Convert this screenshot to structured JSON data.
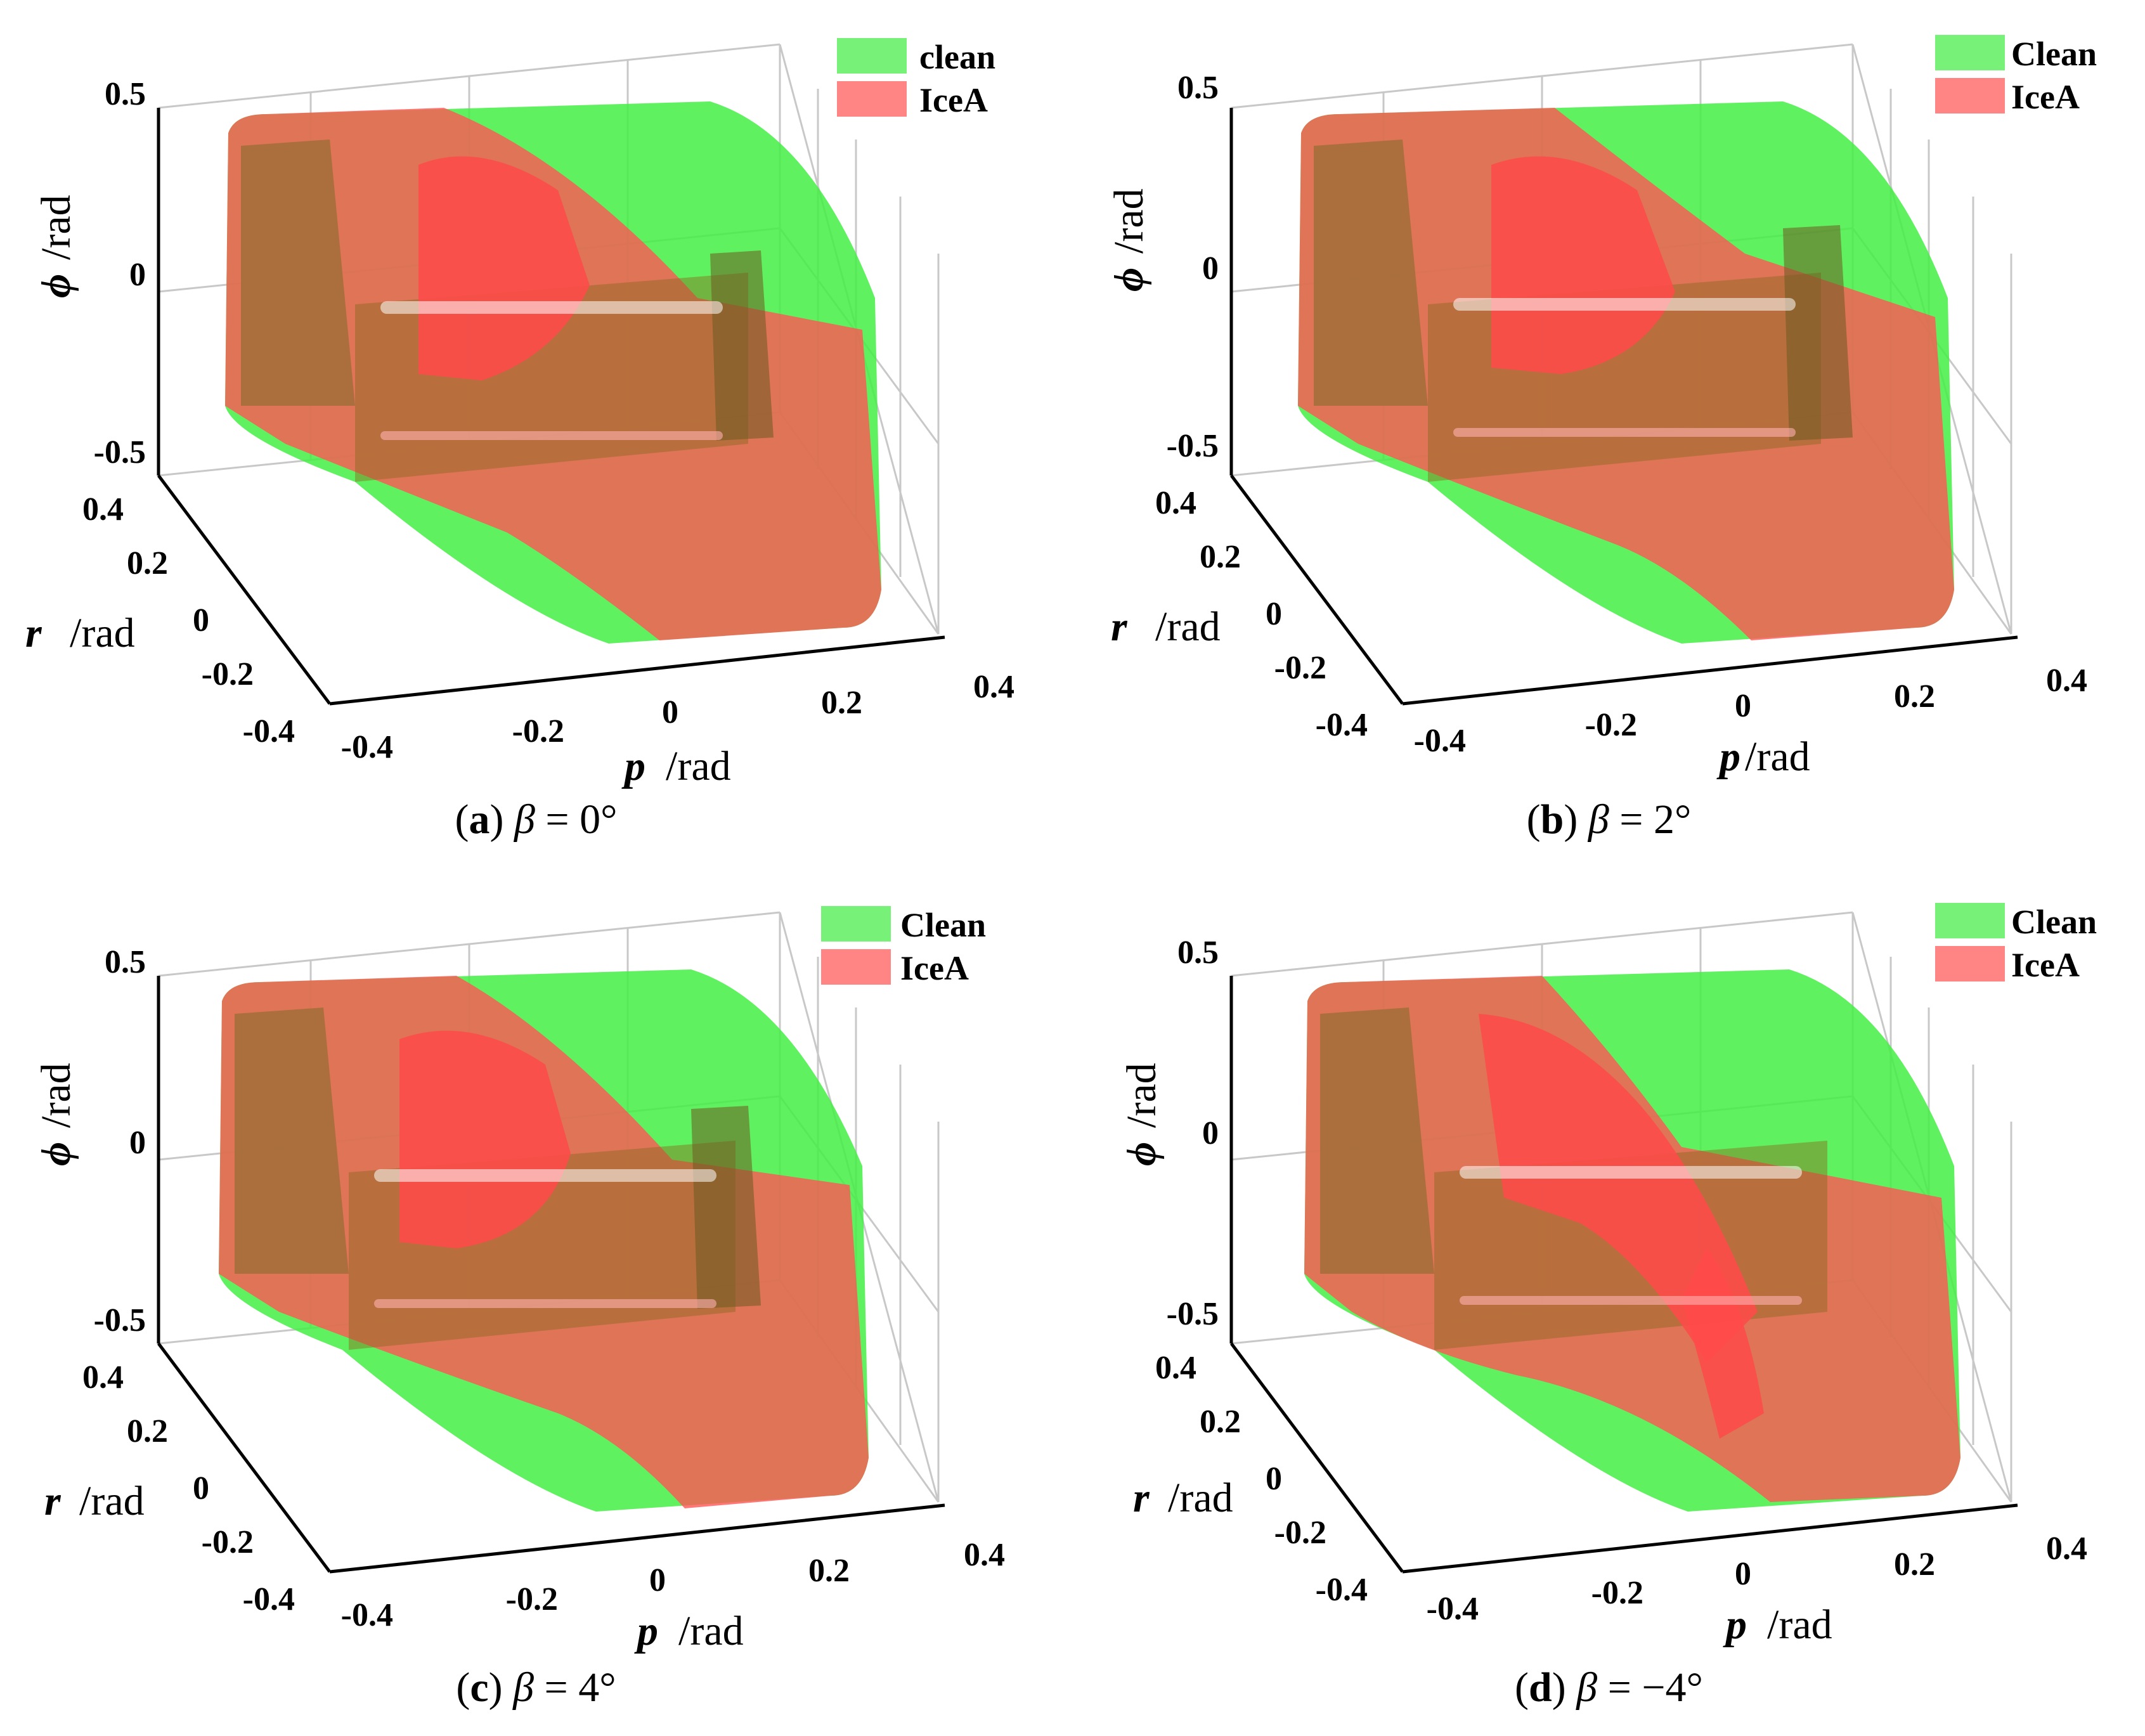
{
  "chart_data": [
    {
      "type": "3d-surface",
      "panel_letter": "a",
      "caption_symbol": "β",
      "caption_eq": " = ",
      "caption_value": "0°",
      "legend": [
        "clean",
        "IceA"
      ],
      "axes": {
        "x": {
          "var": "p",
          "unit": "/rad",
          "ticks": [
            "-0.4",
            "-0.2",
            "0",
            "0.2",
            "0.4"
          ],
          "range": [
            -0.4,
            0.4
          ]
        },
        "y": {
          "var": "r",
          "unit": "/rad",
          "ticks": [
            "0.4",
            "0.2",
            "0",
            "-0.2",
            "-0.4"
          ],
          "range": [
            -0.4,
            0.4
          ]
        },
        "z": {
          "var": "ϕ",
          "unit": "/rad",
          "ticks": [
            "0.5",
            "0",
            "-0.5"
          ],
          "range": [
            -0.5,
            0.5
          ]
        }
      },
      "series": [
        {
          "name": "clean",
          "color": "#44ee44"
        },
        {
          "name": "IceA",
          "color": "#ff5555"
        }
      ]
    },
    {
      "type": "3d-surface",
      "panel_letter": "b",
      "caption_symbol": "β",
      "caption_eq": " = ",
      "caption_value": "2°",
      "legend": [
        "Clean",
        "IceA"
      ],
      "axes": {
        "x": {
          "var": "p",
          "unit": "/rad",
          "ticks": [
            "-0.4",
            "-0.2",
            "0",
            "0.2",
            "0.4"
          ],
          "range": [
            -0.4,
            0.4
          ]
        },
        "y": {
          "var": "r",
          "unit": "/rad",
          "ticks": [
            "0.4",
            "0.2",
            "0",
            "-0.2",
            "-0.4"
          ],
          "range": [
            -0.4,
            0.4
          ]
        },
        "z": {
          "var": "ϕ",
          "unit": "/rad",
          "ticks": [
            "0.5",
            "0",
            "-0.5"
          ],
          "range": [
            -0.5,
            0.5
          ]
        }
      },
      "series": [
        {
          "name": "Clean",
          "color": "#44ee44"
        },
        {
          "name": "IceA",
          "color": "#ff5555"
        }
      ]
    },
    {
      "type": "3d-surface",
      "panel_letter": "c",
      "caption_symbol": "β",
      "caption_eq": " = ",
      "caption_value": "4°",
      "legend": [
        "Clean",
        "IceA"
      ],
      "axes": {
        "x": {
          "var": "p",
          "unit": "/rad",
          "ticks": [
            "-0.4",
            "-0.2",
            "0",
            "0.2",
            "0.4"
          ],
          "range": [
            -0.4,
            0.4
          ]
        },
        "y": {
          "var": "r",
          "unit": "/rad",
          "ticks": [
            "0.4",
            "0.2",
            "0",
            "-0.2",
            "-0.4"
          ],
          "range": [
            -0.4,
            0.4
          ]
        },
        "z": {
          "var": "ϕ",
          "unit": "/rad",
          "ticks": [
            "0.5",
            "0",
            "-0.5"
          ],
          "range": [
            -0.5,
            0.5
          ]
        }
      },
      "series": [
        {
          "name": "Clean",
          "color": "#44ee44"
        },
        {
          "name": "IceA",
          "color": "#ff5555"
        }
      ]
    },
    {
      "type": "3d-surface",
      "panel_letter": "d",
      "caption_symbol": "β",
      "caption_eq": " = ",
      "caption_value": "−4°",
      "legend": [
        "Clean",
        "IceA"
      ],
      "axes": {
        "x": {
          "var": "p",
          "unit": "/rad",
          "ticks": [
            "-0.4",
            "-0.2",
            "0",
            "0.2",
            "0.4"
          ],
          "range": [
            -0.4,
            0.4
          ]
        },
        "y": {
          "var": "r",
          "unit": "/rad",
          "ticks": [
            "0.4",
            "0.2",
            "0",
            "-0.2",
            "-0.4"
          ],
          "range": [
            -0.4,
            0.4
          ]
        },
        "z": {
          "var": "ϕ",
          "unit": "/rad",
          "ticks": [
            "0.5",
            "0",
            "-0.5"
          ],
          "range": [
            -0.5,
            0.5
          ]
        }
      },
      "series": [
        {
          "name": "Clean",
          "color": "#44ee44"
        },
        {
          "name": "IceA",
          "color": "#ff5555"
        }
      ]
    }
  ]
}
